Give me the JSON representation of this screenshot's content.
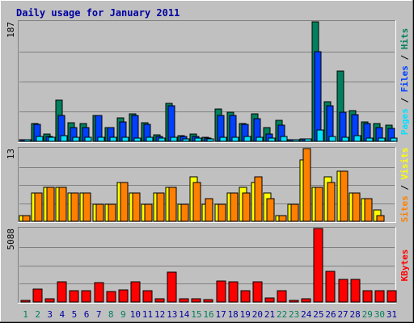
{
  "title": "Daily usage for January 2011",
  "colors": {
    "background": "#c0c0c0",
    "plot": "#c0c0c0",
    "title": "#0000a0",
    "hits": "#00805c",
    "files": "#0040ff",
    "pages": "#00e0ff",
    "visits": "#ff8000",
    "sites": "#ffff00",
    "kbytes": "#ff0000",
    "weekend_label": "#00805c",
    "weekday_label": "#0000a0"
  },
  "chart_data": [
    {
      "type": "bar",
      "name": "hits-files-pages",
      "ymax_label": "187",
      "ylim": [
        0,
        187
      ],
      "axis_label_parts": [
        "Pages",
        " / ",
        "Files",
        " / ",
        "Hits"
      ],
      "categories": [
        "1",
        "2",
        "3",
        "4",
        "5",
        "6",
        "7",
        "8",
        "9",
        "10",
        "11",
        "12",
        "13",
        "14",
        "15",
        "16",
        "17",
        "18",
        "19",
        "20",
        "21",
        "22",
        "23",
        "24",
        "25",
        "26",
        "27",
        "28",
        "29",
        "30",
        "31"
      ],
      "series": [
        {
          "name": "Hits",
          "values": [
            2,
            28,
            12,
            64,
            29,
            28,
            40,
            22,
            37,
            43,
            29,
            10,
            60,
            9,
            12,
            6,
            50,
            45,
            28,
            43,
            22,
            33,
            2,
            4,
            187,
            62,
            110,
            48,
            30,
            28,
            25
          ]
        },
        {
          "name": "Files",
          "values": [
            2,
            26,
            7,
            40,
            22,
            22,
            40,
            22,
            30,
            40,
            27,
            8,
            55,
            7,
            8,
            5,
            40,
            40,
            27,
            35,
            12,
            25,
            1,
            4,
            140,
            55,
            45,
            42,
            28,
            22,
            20
          ]
        },
        {
          "name": "Pages",
          "values": [
            1,
            8,
            6,
            9,
            6,
            6,
            6,
            6,
            6,
            5,
            6,
            5,
            6,
            4,
            5,
            4,
            6,
            6,
            7,
            6,
            5,
            7,
            1,
            4,
            18,
            8,
            6,
            9,
            5,
            5,
            5
          ]
        }
      ]
    },
    {
      "type": "bar",
      "name": "visits-sites",
      "ymax_label": "13",
      "ylim": [
        0,
        13
      ],
      "axis_label_parts": [
        "Sites",
        " / ",
        "Visits"
      ],
      "categories": [
        "1",
        "2",
        "3",
        "4",
        "5",
        "6",
        "7",
        "8",
        "9",
        "10",
        "11",
        "12",
        "13",
        "14",
        "15",
        "16",
        "17",
        "18",
        "19",
        "20",
        "21",
        "22",
        "23",
        "24",
        "25",
        "26",
        "27",
        "28",
        "29",
        "30",
        "31"
      ],
      "series": [
        {
          "name": "Visits",
          "values": [
            1,
            5,
            6,
            6,
            5,
            5,
            3,
            3,
            7,
            5,
            3,
            5,
            6,
            3,
            8,
            3,
            3,
            5,
            6,
            7,
            5,
            1,
            3,
            11,
            6,
            8,
            9,
            5,
            4,
            2,
            0
          ]
        },
        {
          "name": "Sites",
          "values": [
            1,
            5,
            6,
            6,
            5,
            5,
            3,
            3,
            7,
            5,
            3,
            5,
            6,
            3,
            7,
            4,
            3,
            5,
            5,
            8,
            4,
            1,
            3,
            13,
            6,
            7,
            9,
            5,
            4,
            1,
            0
          ]
        }
      ]
    },
    {
      "type": "bar",
      "name": "kbytes",
      "ymax_label": "5088",
      "ylim": [
        0,
        5088
      ],
      "axis_label_parts": [
        "KBytes"
      ],
      "categories": [
        "1",
        "2",
        "3",
        "4",
        "5",
        "6",
        "7",
        "8",
        "9",
        "10",
        "11",
        "12",
        "13",
        "14",
        "15",
        "16",
        "17",
        "18",
        "19",
        "20",
        "21",
        "22",
        "23",
        "24",
        "25",
        "26",
        "27",
        "28",
        "29",
        "30",
        "31"
      ],
      "series": [
        {
          "name": "KBytes",
          "values": [
            40,
            900,
            220,
            1400,
            760,
            800,
            1350,
            740,
            820,
            1400,
            800,
            200,
            2050,
            200,
            220,
            190,
            1450,
            1400,
            800,
            1400,
            280,
            800,
            40,
            220,
            5088,
            2100,
            1550,
            1550,
            760,
            760,
            760
          ]
        }
      ]
    }
  ],
  "x_axis": {
    "labels": [
      "1",
      "2",
      "3",
      "4",
      "5",
      "6",
      "7",
      "8",
      "9",
      "10",
      "11",
      "12",
      "13",
      "14",
      "15",
      "16",
      "17",
      "18",
      "19",
      "20",
      "21",
      "22",
      "23",
      "24",
      "25",
      "26",
      "27",
      "28",
      "29",
      "30",
      "31"
    ],
    "weekend_days": [
      "1",
      "2",
      "8",
      "9",
      "15",
      "16",
      "22",
      "23",
      "29",
      "30"
    ]
  }
}
